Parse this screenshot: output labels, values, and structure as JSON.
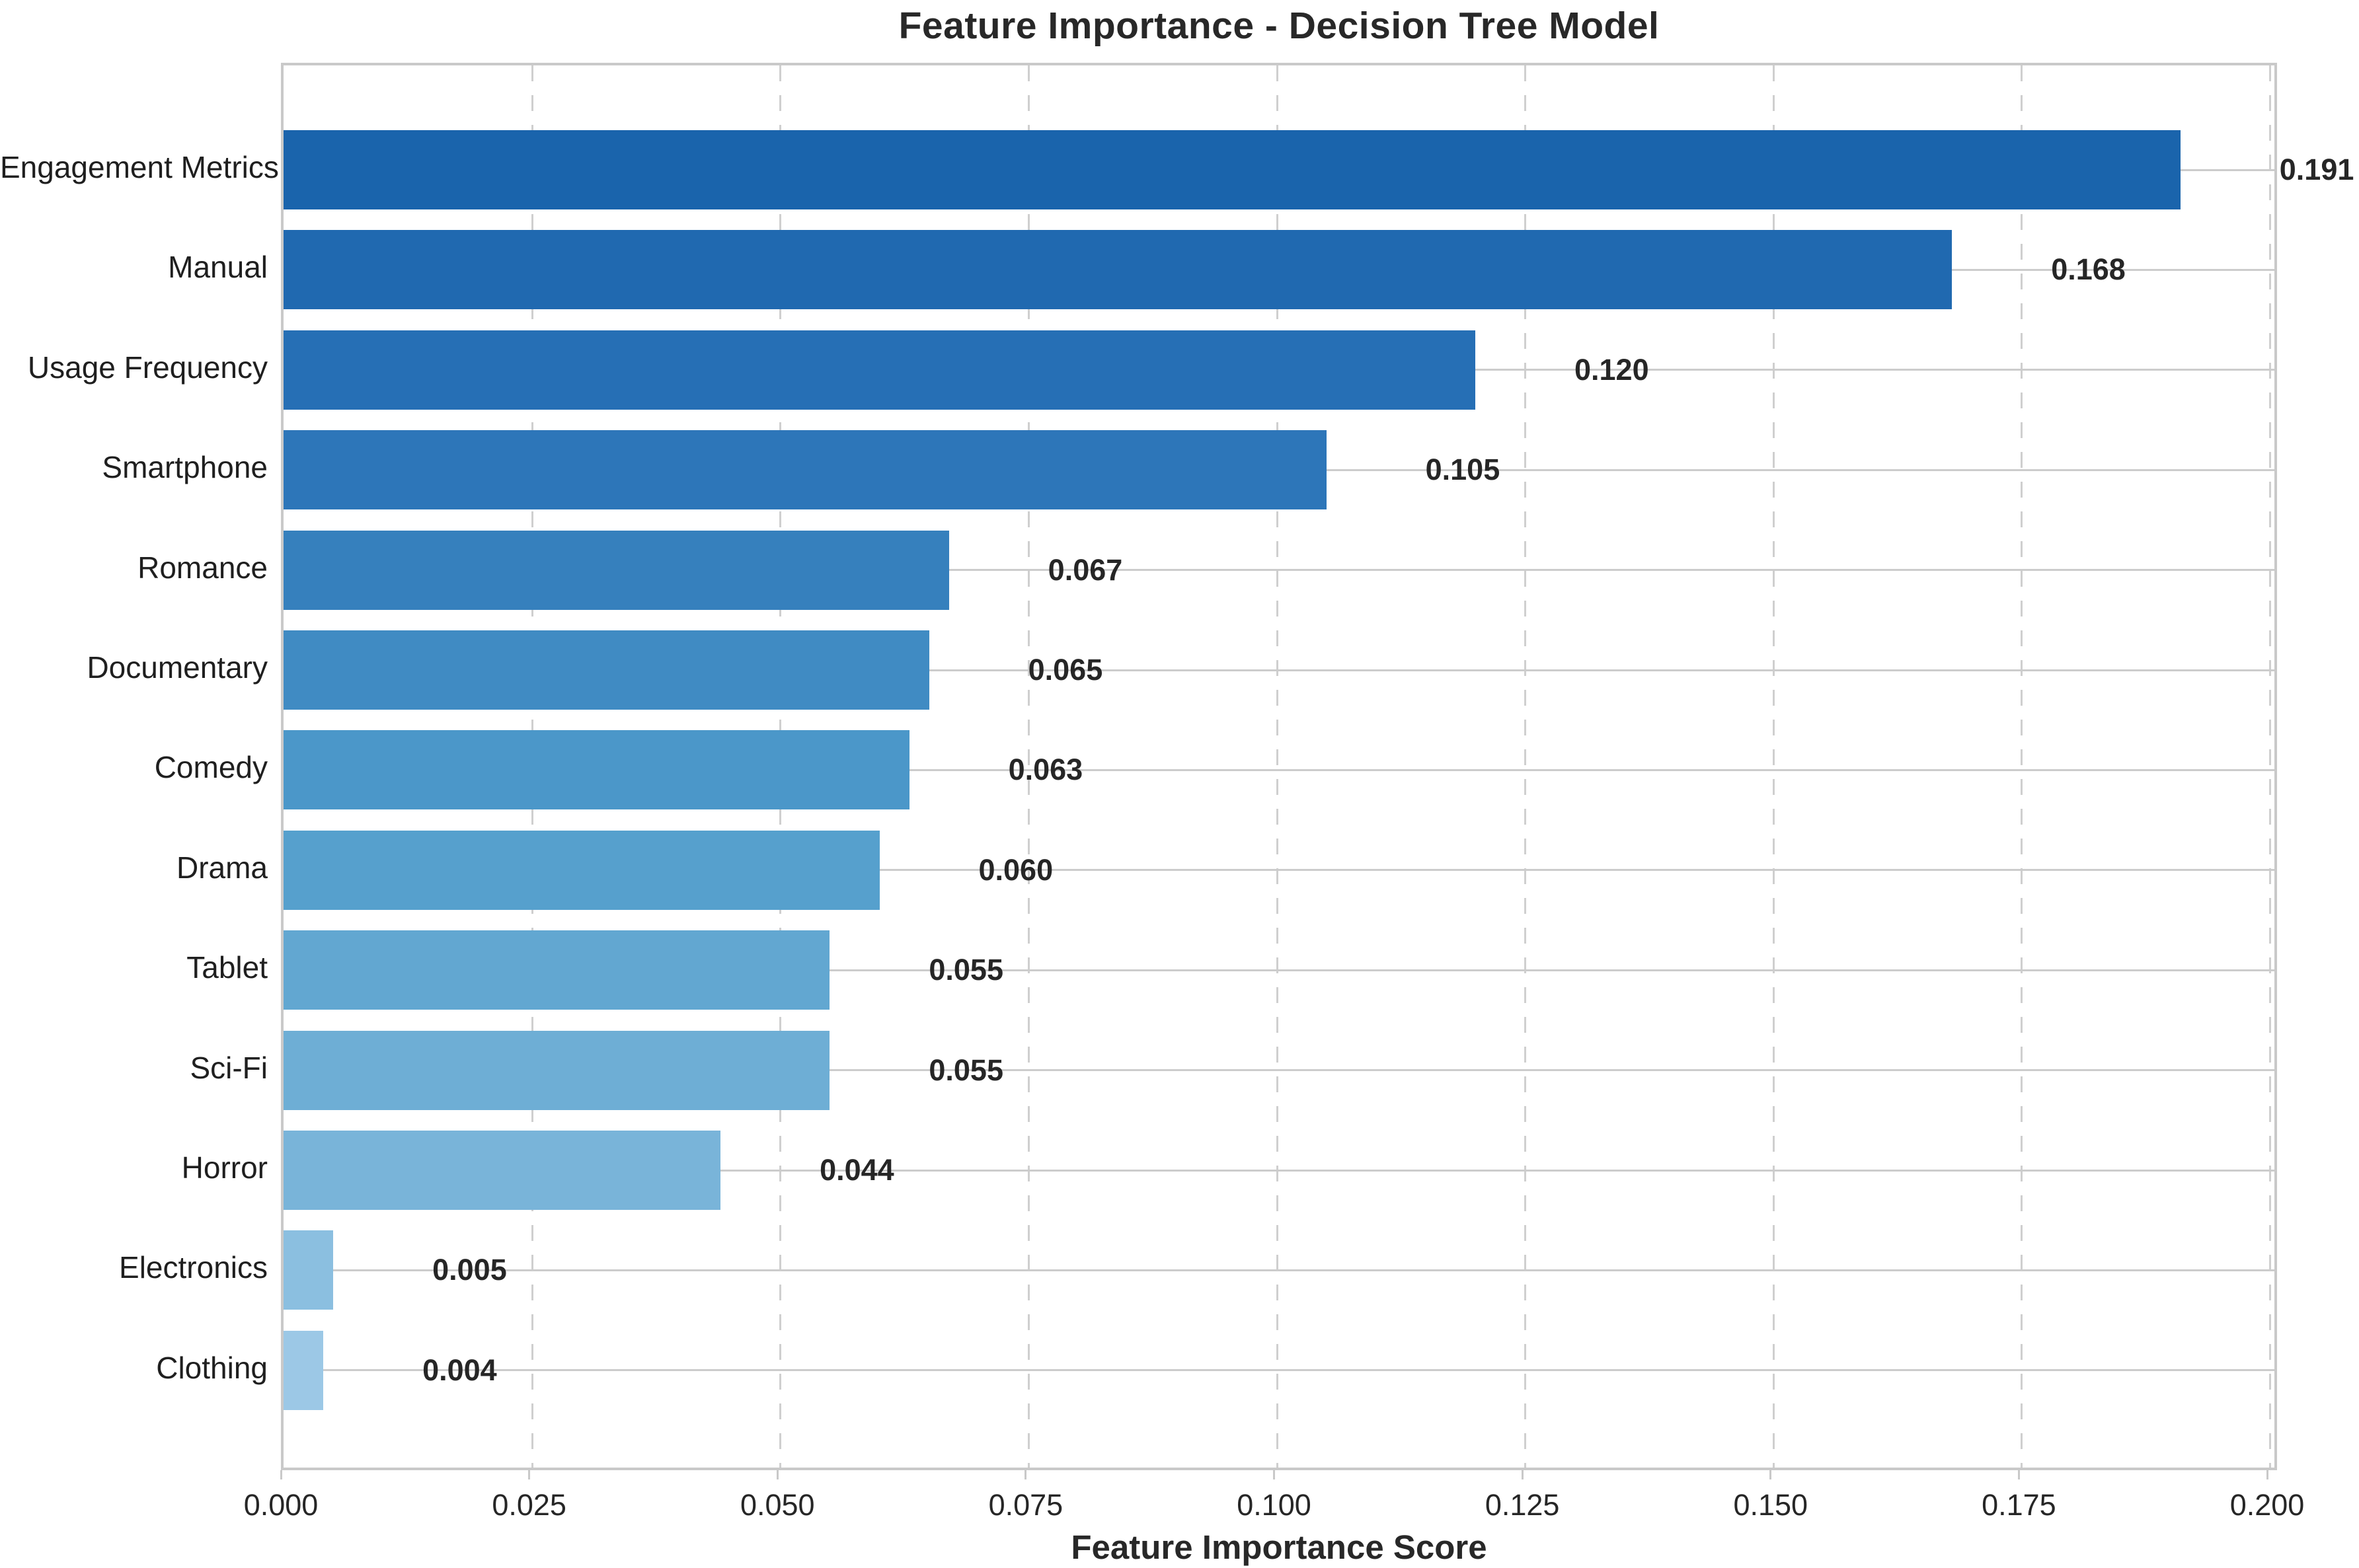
{
  "chart_data": {
    "type": "bar",
    "orientation": "horizontal",
    "title": "Feature Importance - Decision Tree Model",
    "xlabel": "Feature Importance Score",
    "ylabel": "",
    "categories": [
      "Engagement Metrics",
      "Manual",
      "Usage Frequency",
      "Smartphone",
      "Romance",
      "Documentary",
      "Comedy",
      "Drama",
      "Tablet",
      "Sci-Fi",
      "Horror",
      "Electronics",
      "Clothing"
    ],
    "values": [
      0.191,
      0.168,
      0.12,
      0.105,
      0.067,
      0.065,
      0.063,
      0.06,
      0.055,
      0.055,
      0.044,
      0.005,
      0.004
    ],
    "value_labels": [
      "0.191",
      "0.168",
      "0.120",
      "0.105",
      "0.067",
      "0.065",
      "0.063",
      "0.060",
      "0.055",
      "0.055",
      "0.044",
      "0.005",
      "0.004"
    ],
    "bar_colors": [
      "#1a64ac",
      "#2069b0",
      "#266fb5",
      "#2d76b9",
      "#3680bd",
      "#408bc3",
      "#4b97c9",
      "#56a0cd",
      "#62a7d1",
      "#6eaed5",
      "#79b4d9",
      "#8bbfe0",
      "#9cc8e6"
    ],
    "xlim": [
      0.0,
      0.2
    ],
    "xticks": [
      0.0,
      0.025,
      0.05,
      0.075,
      0.1,
      0.125,
      0.15,
      0.175,
      0.2
    ],
    "xtick_labels": [
      "0.000",
      "0.025",
      "0.050",
      "0.075",
      "0.100",
      "0.125",
      "0.150",
      "0.175",
      "0.200"
    ],
    "grid": {
      "vertical": "dashed",
      "horizontal": "solid"
    },
    "legend": "none"
  },
  "colors": {
    "background": "#ffffff",
    "grid": "#cccccc",
    "spine": "#c9c9c9",
    "text": "#262626"
  }
}
